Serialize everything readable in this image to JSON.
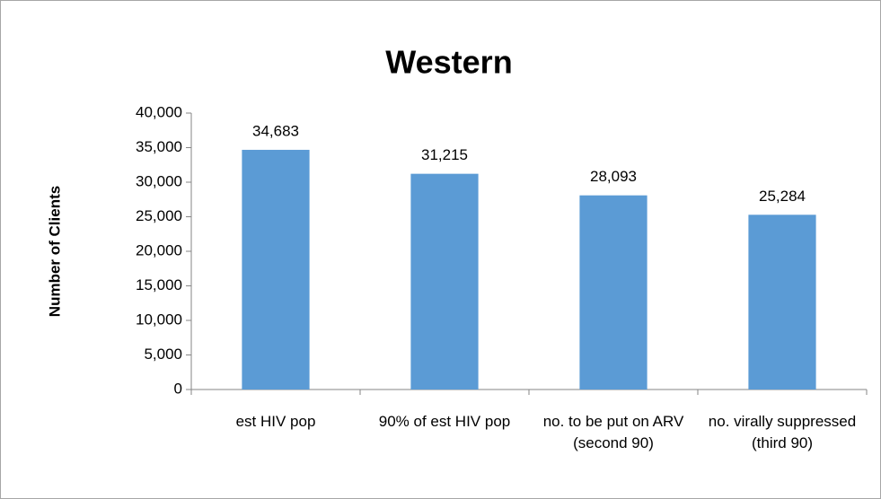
{
  "chart_data": {
    "type": "bar",
    "title": "Western",
    "y_label": "Number of Clients",
    "categories": [
      "est HIV pop",
      "90% of est HIV pop",
      "no. to be put on ARV (second 90)",
      "no. virally suppressed (third 90)"
    ],
    "values": [
      34683,
      31215,
      28093,
      25284
    ],
    "value_labels": [
      "34,683",
      "31,215",
      "28,093",
      "25,284"
    ],
    "color": "#5b9bd5",
    "ylim": [
      0,
      40000
    ],
    "yticks": [
      0,
      {
        "value": 5000,
        "label": "5,000"
      },
      {
        "value": 10000,
        "label": "10,000"
      },
      {
        "value": 15000,
        "label": "15,000"
      },
      {
        "value": 20000,
        "label": "20,000"
      },
      {
        "value": 25000,
        "label": "25,000"
      },
      {
        "value": 30000,
        "label": "30,000"
      },
      {
        "value": 35000,
        "label": "35,000"
      },
      {
        "value": 40000,
        "label": "40,000"
      }
    ],
    "grid": false
  }
}
